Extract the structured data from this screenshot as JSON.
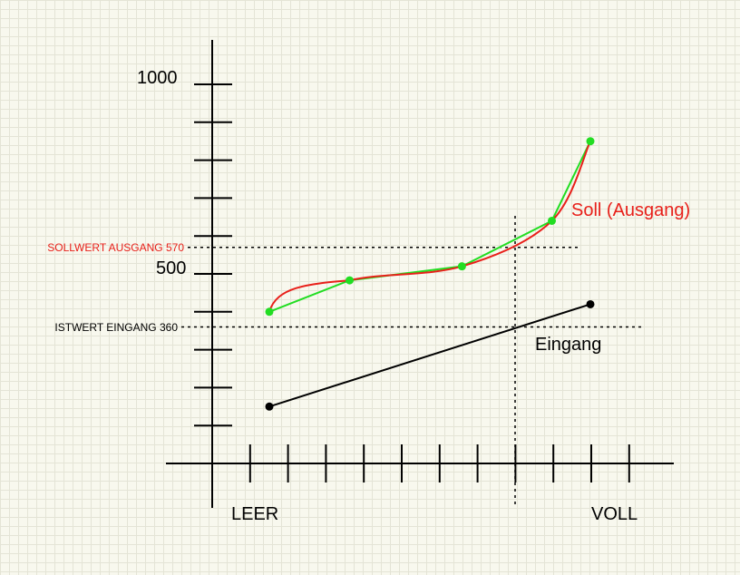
{
  "chart_data": {
    "type": "line",
    "y_tick_labels": [
      "1000",
      "500"
    ],
    "x_labels": {
      "left": "LEER",
      "right": "VOLL"
    },
    "reference_lines": [
      {
        "label": "SOLLWERT AUSGANG 570",
        "value": 570,
        "color": "#e8201a"
      },
      {
        "label": "ISTWERT EINGANG 360",
        "value": 360,
        "color": "#000000"
      }
    ],
    "series": [
      {
        "name": "Soll (Ausgang)",
        "color": "#e8201a",
        "control_color": "#22dd22",
        "x": [
          0,
          0.25,
          0.6,
          0.88,
          1.0
        ],
        "values": [
          400,
          483,
          520,
          640,
          850
        ]
      },
      {
        "name": "Eingang",
        "color": "#000000",
        "x": [
          0,
          1.0
        ],
        "values": [
          150,
          420
        ]
      }
    ]
  }
}
